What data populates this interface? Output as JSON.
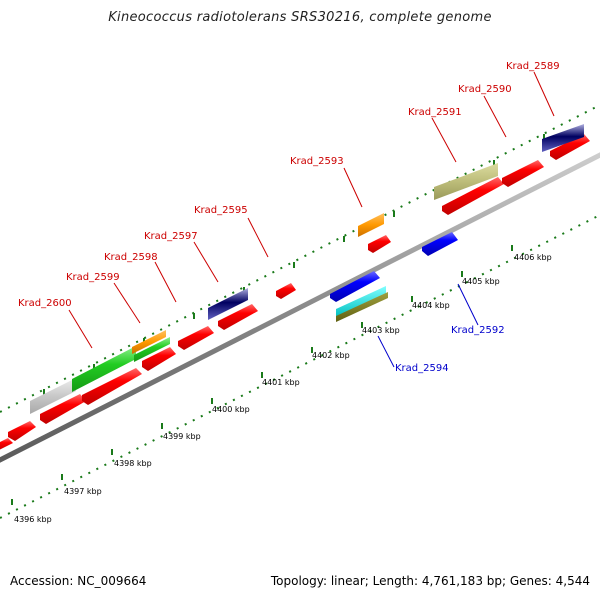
{
  "title": "Kineococcus radiotolerans SRS30216, complete genome",
  "footer": {
    "accession": "Accession: NC_009664",
    "summary": "Topology: linear; Length: 4,761,183 bp; Genes: 4,544"
  },
  "colors": {
    "forward_label": "#cc0000",
    "reverse_label": "#0000cc",
    "tick": "#1a7a1a",
    "backbone": "#8a8a8a"
  },
  "scale": {
    "unit": "kbp",
    "labels": [
      "4396 kbp",
      "4397 kbp",
      "4398 kbp",
      "4399 kbp",
      "4400 kbp",
      "4401 kbp",
      "4402 kbp",
      "4403 kbp",
      "4404 kbp",
      "4405 kbp",
      "4406 kbp"
    ]
  },
  "genes_forward": [
    {
      "name": "Krad_2600",
      "color": "red"
    },
    {
      "name": "Krad_2599",
      "color": "red"
    },
    {
      "name": "Krad_2598",
      "color": "red"
    },
    {
      "name": "Krad_2597",
      "color": "red"
    },
    {
      "name": "Krad_2595",
      "color": "red"
    },
    {
      "name": "Krad_2593",
      "color": "red"
    },
    {
      "name": "Krad_2591",
      "color": "red"
    },
    {
      "name": "Krad_2590",
      "color": "red"
    },
    {
      "name": "Krad_2589",
      "color": "red"
    }
  ],
  "genes_reverse": [
    {
      "name": "Krad_2594",
      "color": "blue"
    },
    {
      "name": "Krad_2592",
      "color": "blue"
    }
  ]
}
